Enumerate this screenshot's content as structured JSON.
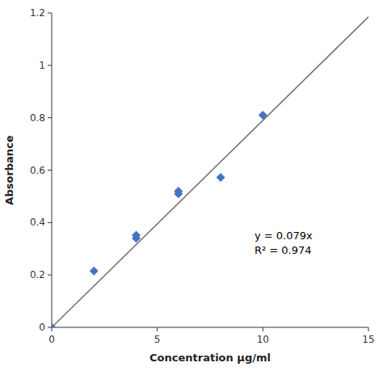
{
  "chart_data": {
    "type": "scatter",
    "x_label": "Concentration μg/ml",
    "y_label": "Absorbance",
    "annotations": [
      "y = 0.079x",
      "R² = 0.974"
    ],
    "series": [
      {
        "type": "scatter",
        "color": "#4472C4",
        "marker": "diamond",
        "x": [
          0,
          2,
          4,
          4,
          6,
          6,
          8,
          10
        ],
        "values": [
          0.0,
          0.215,
          0.34,
          0.352,
          0.51,
          0.52,
          0.572,
          0.81
        ]
      },
      {
        "type": "line",
        "color": "#707070",
        "line_style": "solid",
        "x": [
          0,
          15
        ],
        "values": [
          0,
          1.185
        ]
      }
    ],
    "xlim": [
      0,
      15
    ],
    "ylim": [
      0,
      1.2
    ],
    "xticks": [
      0,
      5,
      10,
      15
    ],
    "yticks": [
      0,
      0.2,
      0.4,
      0.6,
      0.8,
      1,
      1.2
    ],
    "grid": false
  }
}
